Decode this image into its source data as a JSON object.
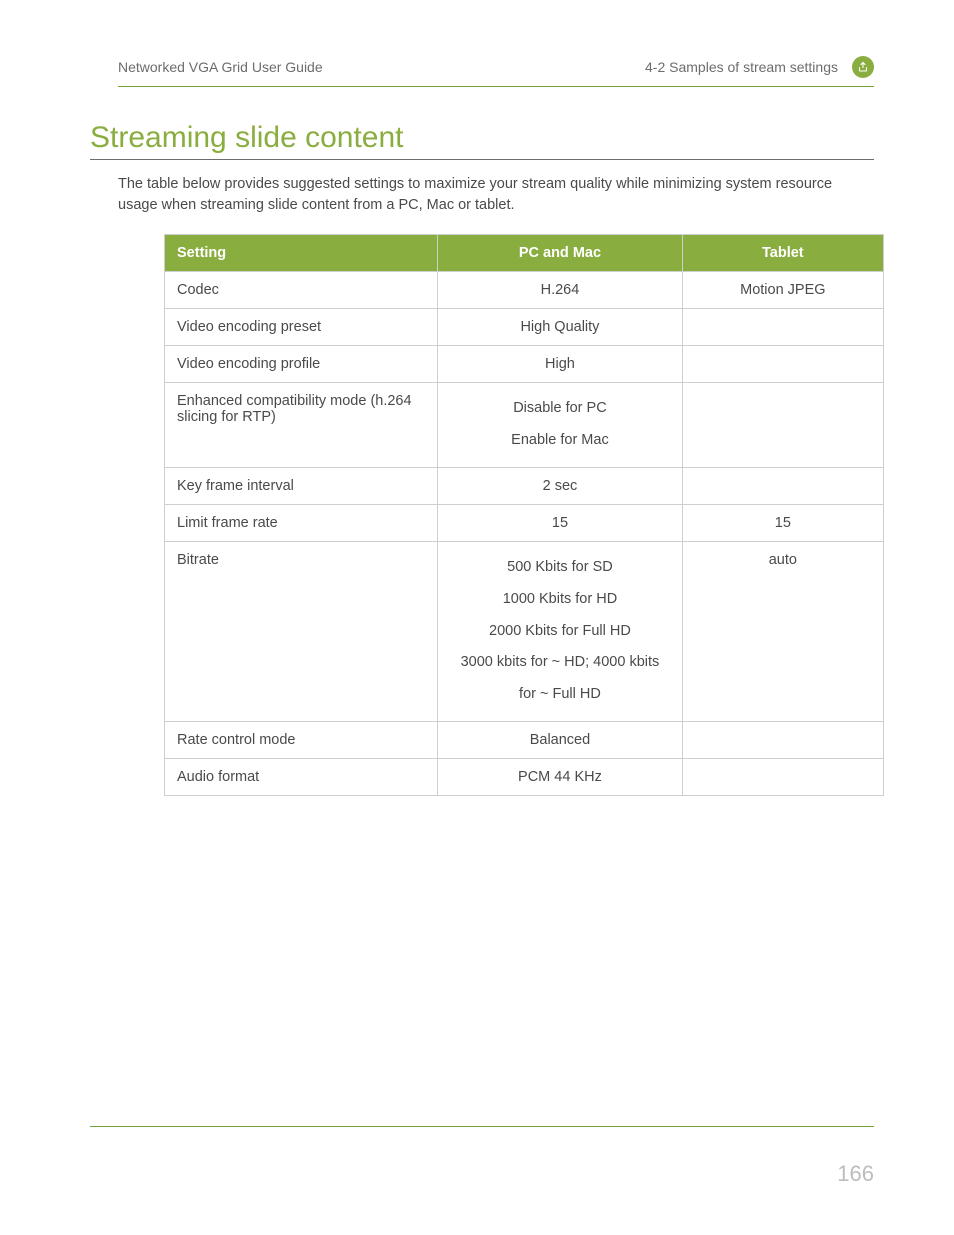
{
  "header": {
    "left": "Networked VGA Grid User Guide",
    "right": "4-2 Samples of stream settings"
  },
  "title": "Streaming slide content",
  "intro": "The table below provides suggested settings to maximize your stream quality while minimizing system resource usage when streaming slide content from a PC, Mac or tablet.",
  "table": {
    "columns": [
      "Setting",
      "PC and Mac",
      "Tablet"
    ],
    "rows": [
      {
        "setting": "Codec",
        "pcmac": "H.264",
        "tablet": "Motion JPEG"
      },
      {
        "setting": "Video encoding preset",
        "pcmac": "High Quality",
        "tablet": ""
      },
      {
        "setting": "Video encoding profile",
        "pcmac": "High",
        "tablet": ""
      },
      {
        "setting": "Enhanced compatibility mode (h.264 slicing for RTP)",
        "pcmac": "Disable for PC\nEnable for Mac",
        "tablet": ""
      },
      {
        "setting": "Key frame interval",
        "pcmac": "2 sec",
        "tablet": ""
      },
      {
        "setting": "Limit frame rate",
        "pcmac": "15",
        "tablet": "15"
      },
      {
        "setting": "Bitrate",
        "pcmac": "500 Kbits for SD\n1000 Kbits for HD\n2000 Kbits for Full HD\n3000 kbits for ~ HD; 4000 kbits for ~ Full HD",
        "tablet": "auto"
      },
      {
        "setting": "Rate control mode",
        "pcmac": "Balanced",
        "tablet": ""
      },
      {
        "setting": "Audio format",
        "pcmac": "PCM 44 KHz",
        "tablet": ""
      }
    ]
  },
  "page_number": "166",
  "colors": {
    "accent": "#8aad3f",
    "text": "#4a4a4a",
    "muted": "#6d6d6d",
    "border": "#cfcfcf",
    "page_num": "#bdbdbd"
  }
}
